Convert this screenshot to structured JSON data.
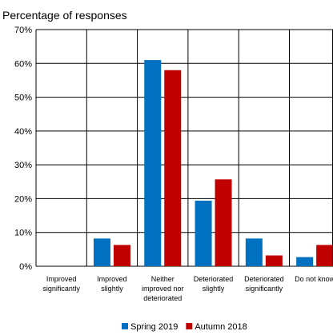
{
  "chart_data": {
    "type": "bar",
    "title": "",
    "ylabel": "Percentage of responses",
    "xlabel": "",
    "ylim": [
      0,
      70
    ],
    "yticks": [
      0,
      10,
      20,
      30,
      40,
      50,
      60,
      70
    ],
    "ytick_labels": [
      "0%",
      "10%",
      "20%",
      "30%",
      "40%",
      "50%",
      "60%",
      "70%"
    ],
    "grid": true,
    "legend_position": "bottom",
    "categories": [
      [
        "Improved",
        "significantly"
      ],
      [
        "Improved",
        "slightly"
      ],
      [
        "Neither",
        "improved nor",
        "deteriorated"
      ],
      [
        "Deteriorated",
        "slightly"
      ],
      [
        "Deteriorated",
        "significantly"
      ],
      [
        "Do not know"
      ]
    ],
    "series": [
      {
        "name": "Spring 2019",
        "color": "#0070c0",
        "values": [
          0,
          8.2,
          61,
          19.4,
          8.2,
          2.7
        ]
      },
      {
        "name": "Autumn 2018",
        "color": "#c00000",
        "values": [
          0,
          6.3,
          58,
          25.7,
          3.2,
          6.3
        ]
      }
    ]
  }
}
